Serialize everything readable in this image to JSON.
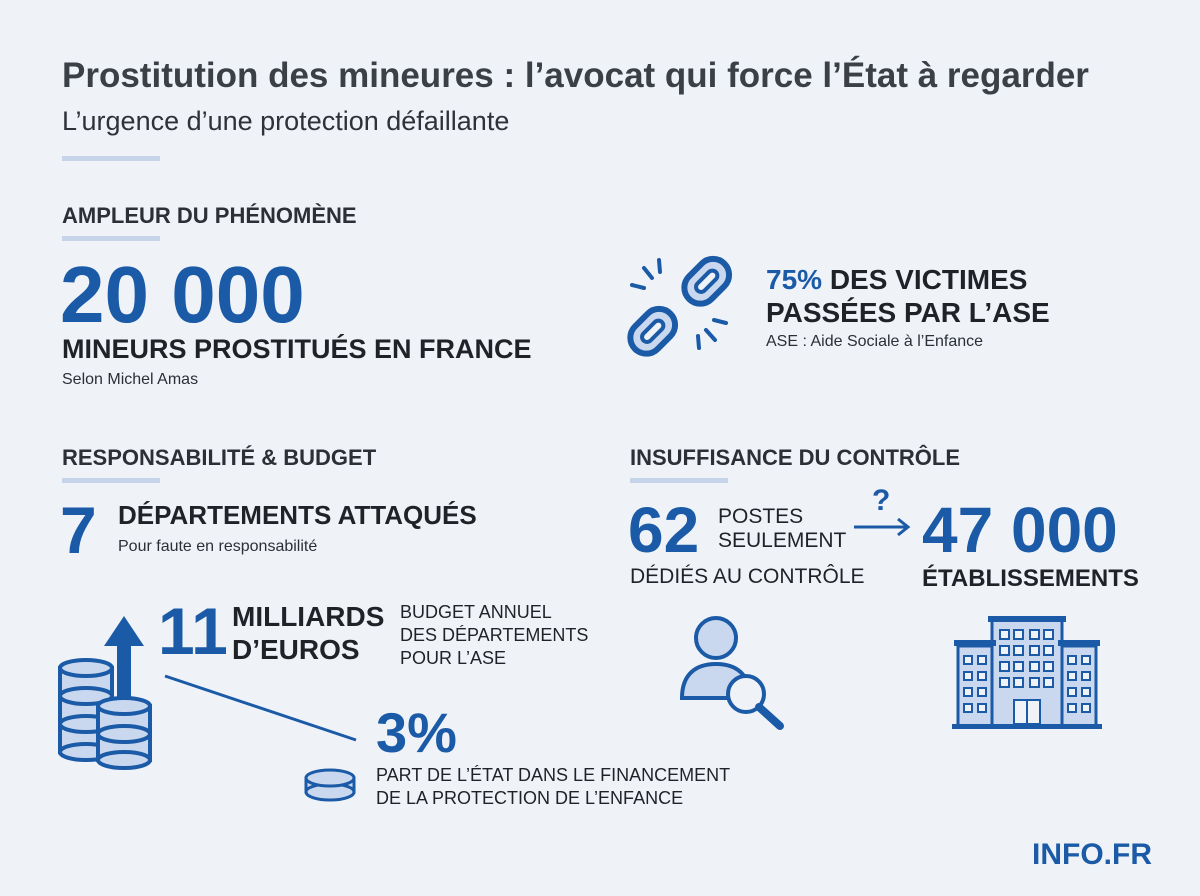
{
  "header": {
    "title": "Prostitution des mineures : l’avocat qui force l’État à regarder",
    "subtitle": "L’urgence d’une protection défaillante"
  },
  "ampleur": {
    "heading": "AMPLEUR DU PHÉNOMÈNE",
    "number": "20 000",
    "label": "MINEURS PROSTITUÉS EN FRANCE",
    "source": "Selon Michel Amas"
  },
  "ase": {
    "percent": "75%",
    "line1_rest": "DES VICTIMES",
    "line2": "PASSÉES PAR L’ASE",
    "note": "ASE : Aide Sociale à l’Enfance",
    "icon": "broken-chain-icon"
  },
  "responsabilite": {
    "heading": "RESPONSABILITÉ & BUDGET",
    "number": "7",
    "label": "DÉPARTEMENTS ATTAQUÉS",
    "note": "Pour faute en responsabilité"
  },
  "budget": {
    "number": "11",
    "unit_line1": "MILLIARDS",
    "unit_line2": "D’EUROS",
    "desc_line1": "BUDGET ANNUEL",
    "desc_line2": "DES DÉPARTEMENTS",
    "desc_line3": "POUR L’ASE",
    "icon": "coin-stack-arrow-icon"
  },
  "etat": {
    "percent": "3%",
    "desc_line1": "PART DE L’ÉTAT DANS LE FINANCEMENT",
    "desc_line2": "DE LA PROTECTION DE L’ENFANCE",
    "icon": "single-coin-icon"
  },
  "controle": {
    "heading": "INSUFFISANCE DU CONTRÔLE",
    "number": "62",
    "label_line1": "POSTES",
    "label_line2": "SEULEMENT",
    "label_line3": "DÉDIÉS AU CONTRÔLE",
    "question": "?",
    "target_number": "47 000",
    "target_label": "ÉTABLISSEMENTS",
    "icons": [
      "person-search-icon",
      "building-icon"
    ]
  },
  "brand": "INFO.FR",
  "colors": {
    "accent": "#1b5aa6",
    "background": "#eff3f8",
    "rule": "#c5d4e8",
    "icon_fill": "#c9d8ee"
  }
}
